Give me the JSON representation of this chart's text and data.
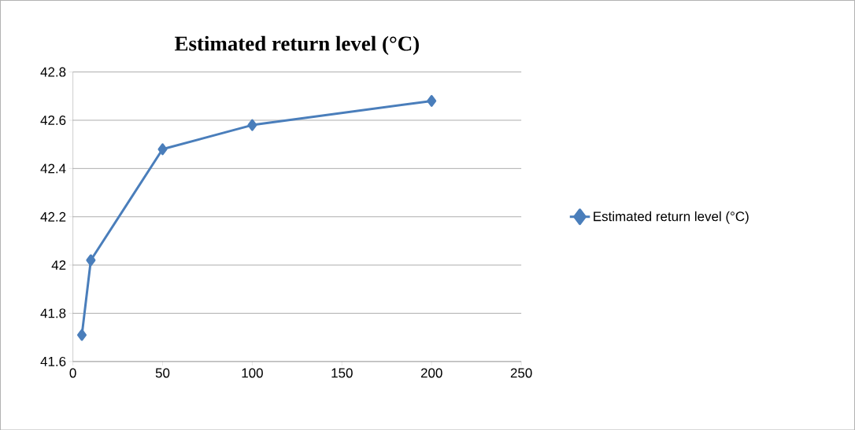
{
  "chart_data": {
    "type": "line",
    "title": "Estimated return level (°C)",
    "x": [
      5,
      10,
      50,
      100,
      200
    ],
    "series": [
      {
        "name": "Estimated return level (°C)",
        "color": "#4a7ebb",
        "values": [
          41.71,
          42.02,
          42.48,
          42.58,
          42.68
        ]
      }
    ],
    "xlim": [
      0,
      250
    ],
    "xticks": [
      0,
      50,
      100,
      150,
      200,
      250
    ],
    "ylim": [
      41.6,
      42.8
    ],
    "yticks": [
      41.6,
      41.8,
      42,
      42.2,
      42.4,
      42.6,
      42.8
    ],
    "grid": "y",
    "legend": "right",
    "marker": "diamond",
    "line_style": "solid"
  }
}
